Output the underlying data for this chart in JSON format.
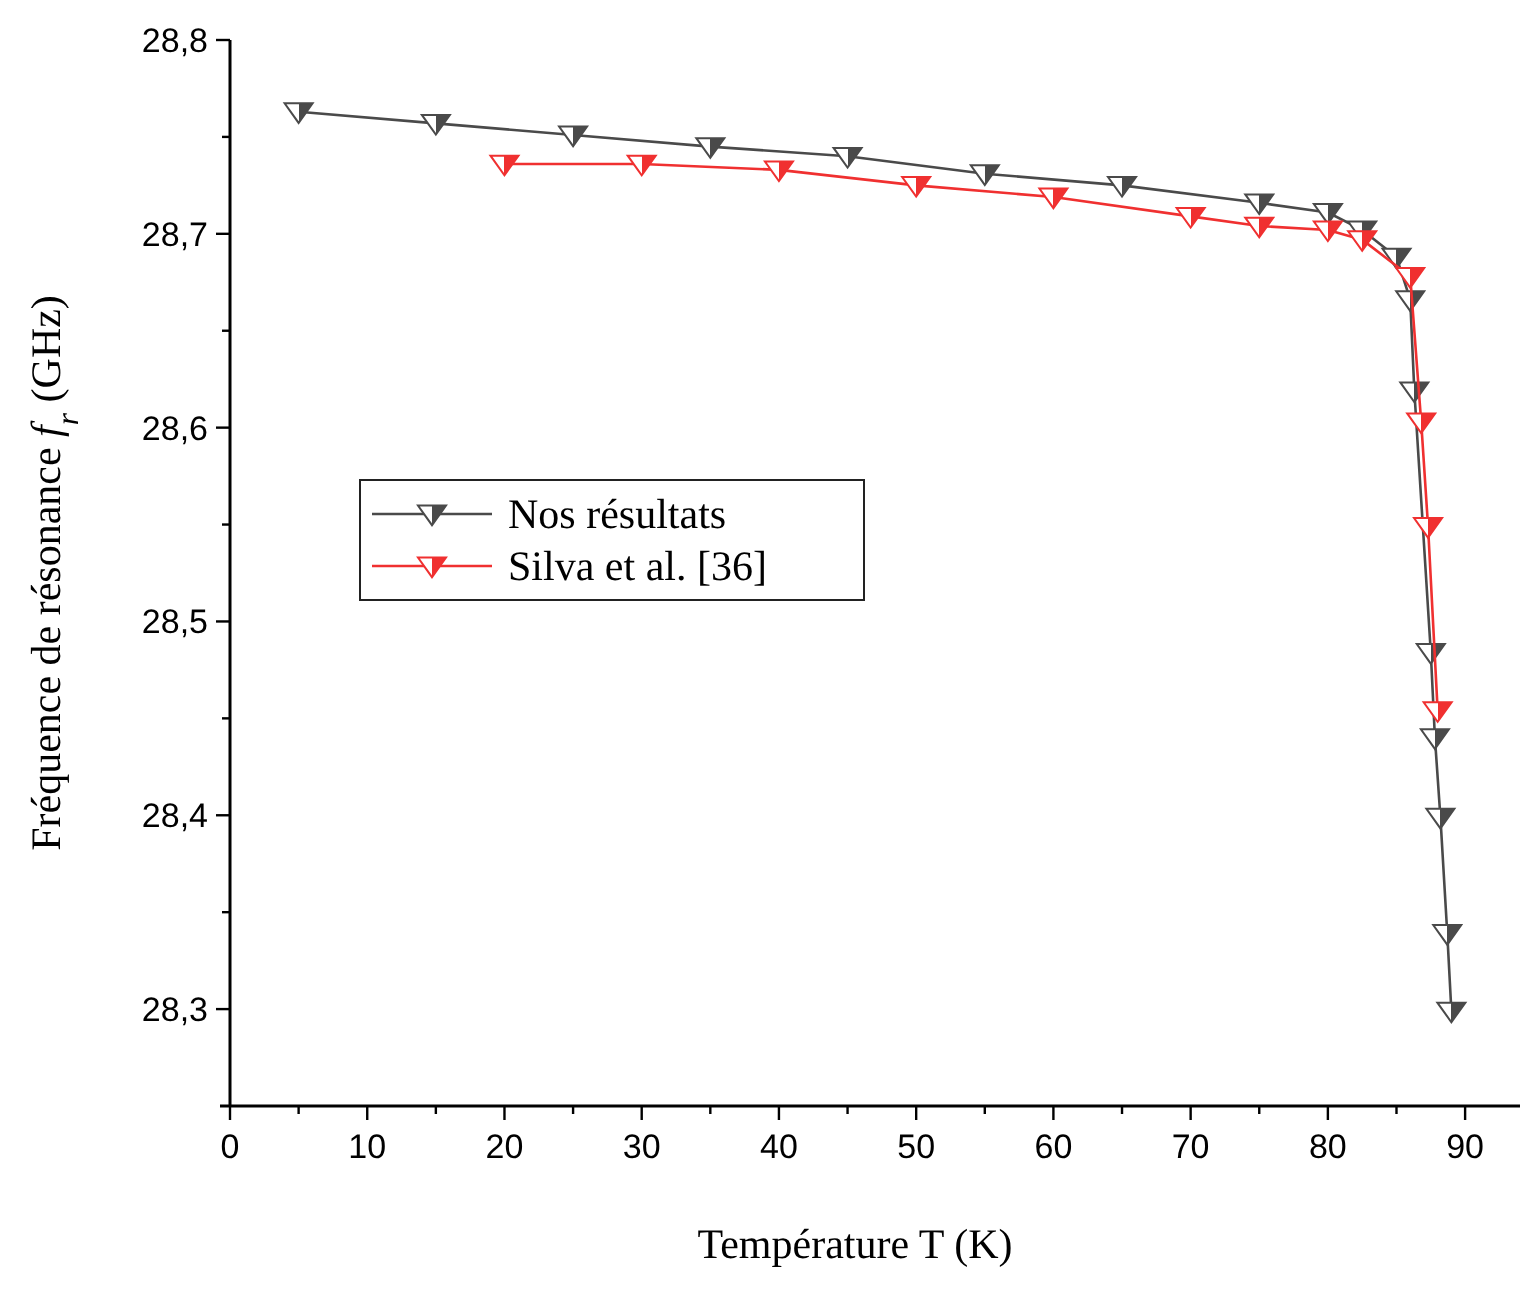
{
  "chart_data": {
    "type": "line",
    "xlabel": "Température T (K)",
    "ylabel": "Fréquence de résonance f$_{r}$ (GHz)",
    "xlim": [
      0,
      94
    ],
    "ylim": [
      28.25,
      28.8
    ],
    "xticks": [
      0,
      {
        "value": 5,
        "label": null
      },
      10,
      {
        "value": 15,
        "label": null
      },
      20,
      {
        "value": 25,
        "label": null
      },
      30,
      {
        "value": 35,
        "label": null
      },
      40,
      {
        "value": 45,
        "label": null
      },
      50,
      {
        "value": 55,
        "label": null
      },
      60,
      {
        "value": 65,
        "label": null
      },
      70,
      {
        "value": 75,
        "label": null
      },
      80,
      {
        "value": 85,
        "label": null
      },
      90
    ],
    "yticks": [
      {
        "value": 28.3,
        "label": "28,3"
      },
      {
        "value": 28.35,
        "label": null
      },
      {
        "value": 28.4,
        "label": "28,4"
      },
      {
        "value": 28.45,
        "label": null
      },
      {
        "value": 28.5,
        "label": "28,5"
      },
      {
        "value": 28.55,
        "label": null
      },
      {
        "value": 28.6,
        "label": "28,6"
      },
      {
        "value": 28.65,
        "label": null
      },
      {
        "value": 28.7,
        "label": "28,7"
      },
      {
        "value": 28.75,
        "label": null
      },
      {
        "value": 28.8,
        "label": "28,8"
      }
    ],
    "grid": false,
    "legend": "left",
    "marker": "triangle",
    "line_style": "solid",
    "series": [
      {
        "name": "Nos résultats",
        "color": "#4a4a4a",
        "x": [
          5,
          15,
          25,
          35,
          45,
          55,
          65,
          75,
          80,
          82.5,
          85,
          86,
          86.3,
          87.5,
          87.8,
          88.2,
          88.7,
          89
        ],
        "values": [
          28.763,
          28.757,
          28.751,
          28.745,
          28.74,
          28.731,
          28.725,
          28.716,
          28.711,
          28.702,
          28.688,
          28.666,
          28.619,
          28.484,
          28.44,
          28.399,
          28.339,
          28.299
        ]
      },
      {
        "name": "Silva et al. [36]",
        "color": "#f03030",
        "x": [
          20,
          30,
          40,
          50,
          60,
          70,
          75,
          80,
          82.5,
          86,
          86.8,
          87.3,
          88
        ],
        "values": [
          28.736,
          28.736,
          28.733,
          28.725,
          28.719,
          28.709,
          28.704,
          28.702,
          28.697,
          28.678,
          28.603,
          28.549,
          28.454
        ]
      }
    ]
  }
}
